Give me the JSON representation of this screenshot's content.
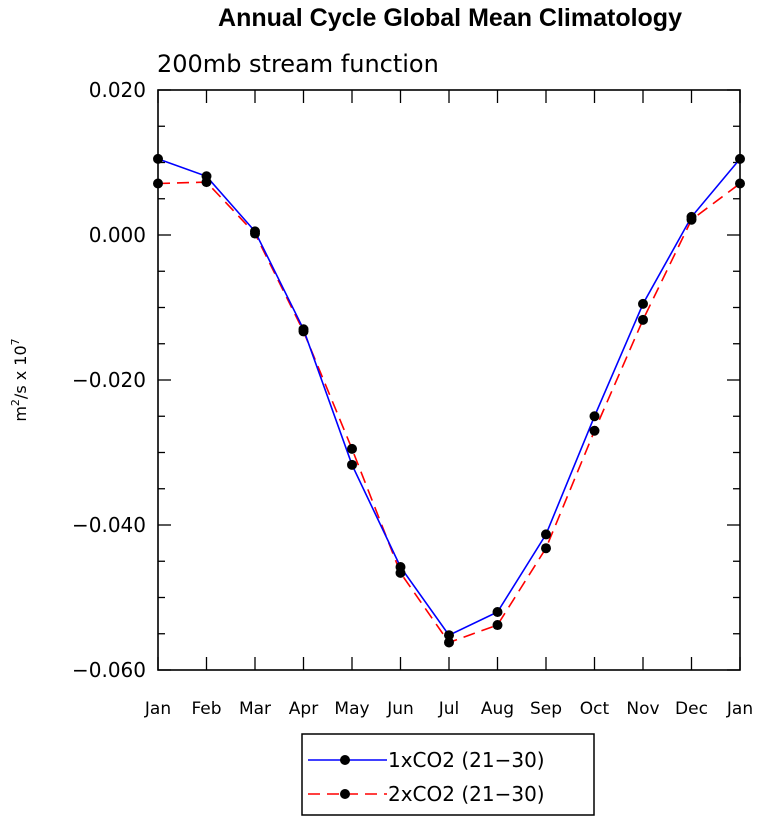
{
  "chart_data": {
    "type": "line",
    "title": "Annual Cycle Global Mean Climatology",
    "subtitle": "200mb stream function",
    "xlabel": "",
    "ylabel": "m²/s x 10⁷",
    "ylabel_main": "m",
    "ylabel_sup1": "2",
    "ylabel_mid": "/s x 10",
    "ylabel_sup2": "7",
    "categories": [
      "Jan",
      "Feb",
      "Mar",
      "Apr",
      "May",
      "Jun",
      "Jul",
      "Aug",
      "Sep",
      "Oct",
      "Nov",
      "Dec",
      "Jan"
    ],
    "ylim": [
      -0.06,
      0.02
    ],
    "y_ticks": [
      0.02,
      0.0,
      -0.02,
      -0.04,
      -0.06
    ],
    "y_tick_labels": [
      "0.020",
      "0.000",
      "−0.020",
      "−0.040",
      "−0.060"
    ],
    "legend_position": "bottom",
    "grid": false,
    "series": [
      {
        "name": "1xCO2 (21−30)",
        "color": "#0000ff",
        "dash": "solid",
        "marker": "circle",
        "values": [
          0.0105,
          0.0081,
          0.0005,
          -0.013,
          -0.0317,
          -0.0458,
          -0.0552,
          -0.052,
          -0.0413,
          -0.025,
          -0.0095,
          0.0025,
          0.0105
        ]
      },
      {
        "name": "2xCO2 (21−30)",
        "color": "#ff0000",
        "dash": "dashed",
        "marker": "circle",
        "values": [
          0.0071,
          0.0073,
          0.0002,
          -0.0133,
          -0.0295,
          -0.0466,
          -0.0562,
          -0.0538,
          -0.0432,
          -0.027,
          -0.0117,
          0.0021,
          0.0071
        ]
      }
    ]
  }
}
